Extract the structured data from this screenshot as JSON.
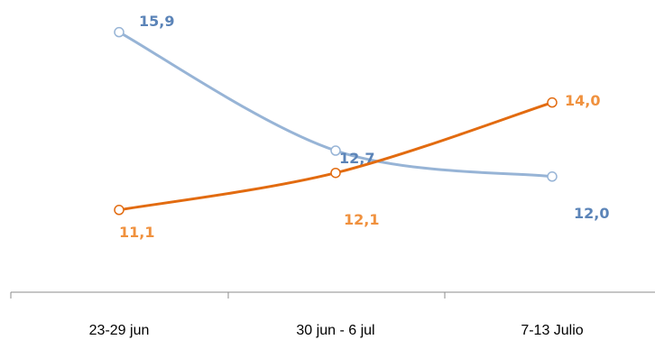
{
  "chart_data": {
    "type": "line",
    "categories": [
      "23-29 jun",
      "30 jun - 6 jul",
      "7-13 Julio"
    ],
    "series": [
      {
        "values": [
          15.9,
          12.7,
          12.0
        ],
        "labels": [
          "15,9",
          "12,7",
          "12,0"
        ],
        "color": "#97b4d6",
        "label_color": "#5b84b8",
        "smooth": true
      },
      {
        "values": [
          11.1,
          12.1,
          14.0
        ],
        "labels": [
          "11,1",
          "12,1",
          "14,0"
        ],
        "color": "#e26b10",
        "label_color": "#f0913e",
        "smooth": true
      }
    ],
    "ylim": [
      9.0,
      16.5
    ],
    "grid": false,
    "legend": "none"
  }
}
